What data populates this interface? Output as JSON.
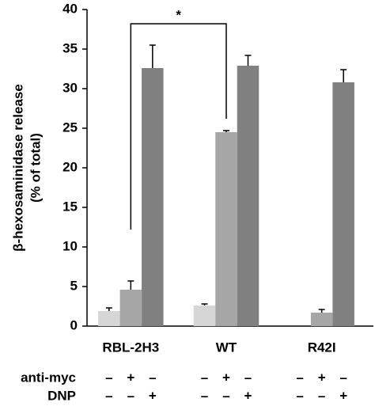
{
  "chart_data": {
    "type": "bar",
    "ylabel": [
      "β-hexosaminidase release",
      "(% of total)"
    ],
    "categories": [
      "RBL-2H3",
      "WT",
      "R42I"
    ],
    "series": [
      {
        "color": "#d6d6d6",
        "values": [
          1.9,
          2.6,
          0
        ],
        "errors": [
          0.4,
          0.2,
          null
        ]
      },
      {
        "color": "#a6a6a6",
        "values": [
          4.6,
          24.5,
          1.7
        ],
        "errors": [
          1.1,
          0.2,
          0.4
        ]
      },
      {
        "color": "#808080",
        "values": [
          32.6,
          32.9,
          30.8
        ],
        "errors": [
          2.9,
          1.3,
          1.6
        ]
      }
    ],
    "ylim": [
      0,
      40
    ],
    "yticks": [
      0,
      5,
      10,
      15,
      20,
      25,
      30,
      35,
      40
    ],
    "grid": false,
    "significance": {
      "label": "*",
      "from": [
        0,
        1
      ],
      "to": [
        1,
        1
      ]
    },
    "treatments": [
      {
        "label": "anti-myc",
        "signs": [
          "–",
          "+",
          "–",
          "–",
          "+",
          "–",
          "–",
          "+",
          "–"
        ]
      },
      {
        "label": "DNP",
        "signs": [
          "–",
          "–",
          "+",
          "–",
          "–",
          "+",
          "–",
          "–",
          "+"
        ]
      }
    ]
  }
}
